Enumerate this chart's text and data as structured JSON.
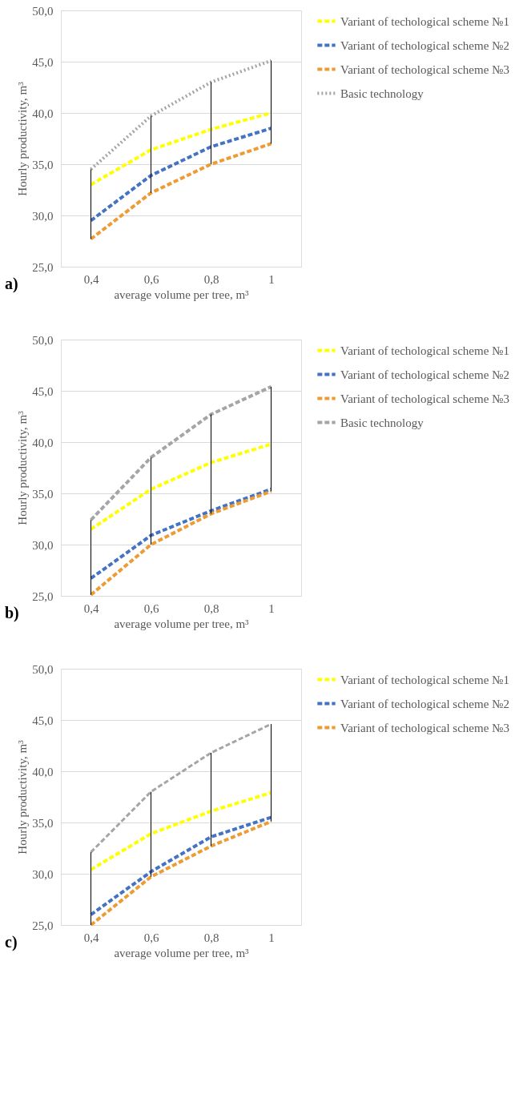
{
  "chart_data": [
    {
      "type": "line",
      "xlabel": "average volume per tree, m³",
      "ylabel": "Hourly productivity, m³",
      "annotations": [
        "a)"
      ],
      "grid": "y",
      "legend": "right",
      "x": [
        0.4,
        0.6,
        0.8,
        1
      ],
      "xlim": [
        0.3,
        1.1
      ],
      "xticks": [
        {
          "value": 0.4,
          "label": "0,4"
        },
        {
          "value": 0.6,
          "label": "0,6"
        },
        {
          "value": 0.8,
          "label": "0,8"
        },
        {
          "value": 1,
          "label": "1"
        }
      ],
      "ylim": [
        25,
        50
      ],
      "yticks": [
        {
          "value": 25,
          "label": "25,0"
        },
        {
          "value": 30,
          "label": "30,0"
        },
        {
          "value": 35,
          "label": "35,0"
        },
        {
          "value": 40,
          "label": "40,0"
        },
        {
          "value": 45,
          "label": "45,0"
        },
        {
          "value": 50,
          "label": "50,0"
        }
      ],
      "series": [
        {
          "name": "Variant of techological scheme №1",
          "color": "#ffff00",
          "line_style": "dashed",
          "values": [
            33.0,
            36.4,
            38.4,
            40.0
          ]
        },
        {
          "name": "Variant of techological scheme №2",
          "color": "#4472c4",
          "line_style": "dashed",
          "values": [
            29.5,
            33.9,
            36.7,
            38.5
          ]
        },
        {
          "name": "Variant of techological scheme №3",
          "color": "#ed9b33",
          "line_style": "dashed",
          "values": [
            27.7,
            32.2,
            35.0,
            37.0
          ]
        },
        {
          "name": "Basic technology",
          "color": "#a5a5a5",
          "line_style": "dotted",
          "values": [
            34.5,
            39.7,
            43.0,
            45.1
          ]
        },
        {
          "color": "#000000",
          "x": [
            0.4,
            0.4
          ],
          "values": [
            27.7,
            34.5
          ]
        },
        {
          "color": "#000000",
          "x": [
            0.6,
            0.6
          ],
          "values": [
            32.2,
            39.7
          ]
        },
        {
          "color": "#000000",
          "x": [
            0.8,
            0.8
          ],
          "values": [
            35.0,
            43.0
          ]
        },
        {
          "color": "#000000",
          "x": [
            1,
            1
          ],
          "values": [
            37.0,
            45.1
          ]
        }
      ]
    },
    {
      "type": "line",
      "xlabel": "average volume per tree, m³",
      "ylabel": "Hourly productivity, m³",
      "annotations": [
        "b)"
      ],
      "grid": "y",
      "legend": "right",
      "x": [
        0.4,
        0.6,
        0.8,
        1
      ],
      "xlim": [
        0.3,
        1.1
      ],
      "xticks": [
        {
          "value": 0.4,
          "label": "0,4"
        },
        {
          "value": 0.6,
          "label": "0,6"
        },
        {
          "value": 0.8,
          "label": "0,8"
        },
        {
          "value": 1,
          "label": "1"
        }
      ],
      "ylim": [
        25,
        50
      ],
      "yticks": [
        {
          "value": 25,
          "label": "25,0"
        },
        {
          "value": 30,
          "label": "30,0"
        },
        {
          "value": 35,
          "label": "35,0"
        },
        {
          "value": 40,
          "label": "40,0"
        },
        {
          "value": 45,
          "label": "45,0"
        },
        {
          "value": 50,
          "label": "50,0"
        }
      ],
      "series": [
        {
          "name": "Variant of techological scheme №1",
          "color": "#ffff00",
          "line_style": "dashed",
          "values": [
            31.5,
            35.4,
            38.0,
            39.8
          ]
        },
        {
          "name": "Variant of techological scheme №2",
          "color": "#4472c4",
          "line_style": "dashed",
          "values": [
            26.7,
            30.9,
            33.3,
            35.4
          ]
        },
        {
          "name": "Variant of techological scheme №3",
          "color": "#ed9b33",
          "line_style": "dashed",
          "values": [
            25.1,
            30.0,
            33.0,
            35.2
          ]
        },
        {
          "name": "Basic technology",
          "color": "#a5a5a5",
          "line_style": "dashed",
          "values": [
            32.4,
            38.5,
            42.7,
            45.4
          ]
        },
        {
          "color": "#000000",
          "x": [
            0.4,
            0.4
          ],
          "values": [
            25.1,
            32.4
          ]
        },
        {
          "color": "#000000",
          "x": [
            0.6,
            0.6
          ],
          "values": [
            30.0,
            38.5
          ]
        },
        {
          "color": "#000000",
          "x": [
            0.8,
            0.8
          ],
          "values": [
            33.0,
            42.7
          ]
        },
        {
          "color": "#000000",
          "x": [
            1,
            1
          ],
          "values": [
            35.2,
            45.4
          ]
        }
      ]
    },
    {
      "type": "line",
      "xlabel": "average volume per tree, m³",
      "ylabel": "Hourly productivity, m³",
      "annotations": [
        "c)"
      ],
      "grid": "y",
      "legend": "right",
      "x": [
        0.4,
        0.6,
        0.8,
        1
      ],
      "xlim": [
        0.3,
        1.1
      ],
      "xticks": [
        {
          "value": 0.4,
          "label": "0,4"
        },
        {
          "value": 0.6,
          "label": "0,6"
        },
        {
          "value": 0.8,
          "label": "0,8"
        },
        {
          "value": 1,
          "label": "1"
        }
      ],
      "ylim": [
        25,
        50
      ],
      "yticks": [
        {
          "value": 25,
          "label": "25,0"
        },
        {
          "value": 30,
          "label": "30,0"
        },
        {
          "value": 35,
          "label": "35,0"
        },
        {
          "value": 40,
          "label": "40,0"
        },
        {
          "value": 45,
          "label": "45,0"
        },
        {
          "value": 50,
          "label": "50,0"
        }
      ],
      "series": [
        {
          "name": "Variant of techological scheme №1",
          "color": "#ffff00",
          "line_style": "dashed",
          "values": [
            30.4,
            33.9,
            36.1,
            37.9
          ]
        },
        {
          "name": "Variant of techological scheme №2",
          "color": "#4472c4",
          "line_style": "dashed",
          "values": [
            26.0,
            30.2,
            33.6,
            35.5
          ]
        },
        {
          "name": "Variant of techological scheme №3",
          "color": "#ed9b33",
          "line_style": "dashed",
          "values": [
            25.0,
            29.7,
            32.7,
            35.1
          ]
        },
        {
          "color": "#a5a5a5",
          "line_style": "dashed",
          "values": [
            32.1,
            38.0,
            41.8,
            44.6
          ]
        },
        {
          "color": "#000000",
          "x": [
            0.4,
            0.4
          ],
          "values": [
            25.0,
            32.1
          ]
        },
        {
          "color": "#000000",
          "x": [
            0.6,
            0.6
          ],
          "values": [
            29.7,
            38.0
          ]
        },
        {
          "color": "#000000",
          "x": [
            0.8,
            0.8
          ],
          "values": [
            32.7,
            41.8
          ]
        },
        {
          "color": "#000000",
          "x": [
            1,
            1
          ],
          "values": [
            35.1,
            44.6
          ]
        }
      ]
    }
  ]
}
